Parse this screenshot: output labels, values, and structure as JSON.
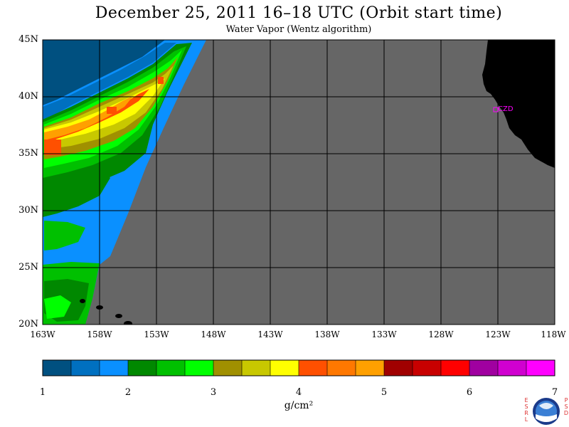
{
  "title": "December 25, 2011  16–18 UTC  (Orbit start time)",
  "subtitle": "Water Vapor (Wentz algorithm)",
  "map": {
    "lat_labels": [
      "45N",
      "40N",
      "35N",
      "30N",
      "25N",
      "20N"
    ],
    "lon_labels": [
      "163W",
      "158W",
      "153W",
      "148W",
      "143W",
      "138W",
      "133W",
      "128W",
      "123W",
      "118W"
    ],
    "station_label": "CZD",
    "station_color": "#ff00ff",
    "nodata_color": "#666666",
    "land_color": "#000000"
  },
  "colorbar": {
    "colors": [
      "#005080",
      "#0070c0",
      "#0a90ff",
      "#008800",
      "#00c000",
      "#00ff00",
      "#a09000",
      "#c8c800",
      "#ffff00",
      "#ff5000",
      "#ff7800",
      "#ffa000",
      "#a00000",
      "#c80000",
      "#ff0000",
      "#a000a0",
      "#d000d0",
      "#ff00ff"
    ],
    "tick_labels": [
      "1",
      "2",
      "3",
      "4",
      "5",
      "6",
      "7"
    ],
    "units_label": "g/cm²"
  },
  "logo": {
    "left_letters": [
      "E",
      "S",
      "R",
      "L"
    ],
    "right_letters": [
      "P",
      "S",
      "D"
    ],
    "emblem": "noaa-emblem"
  }
}
